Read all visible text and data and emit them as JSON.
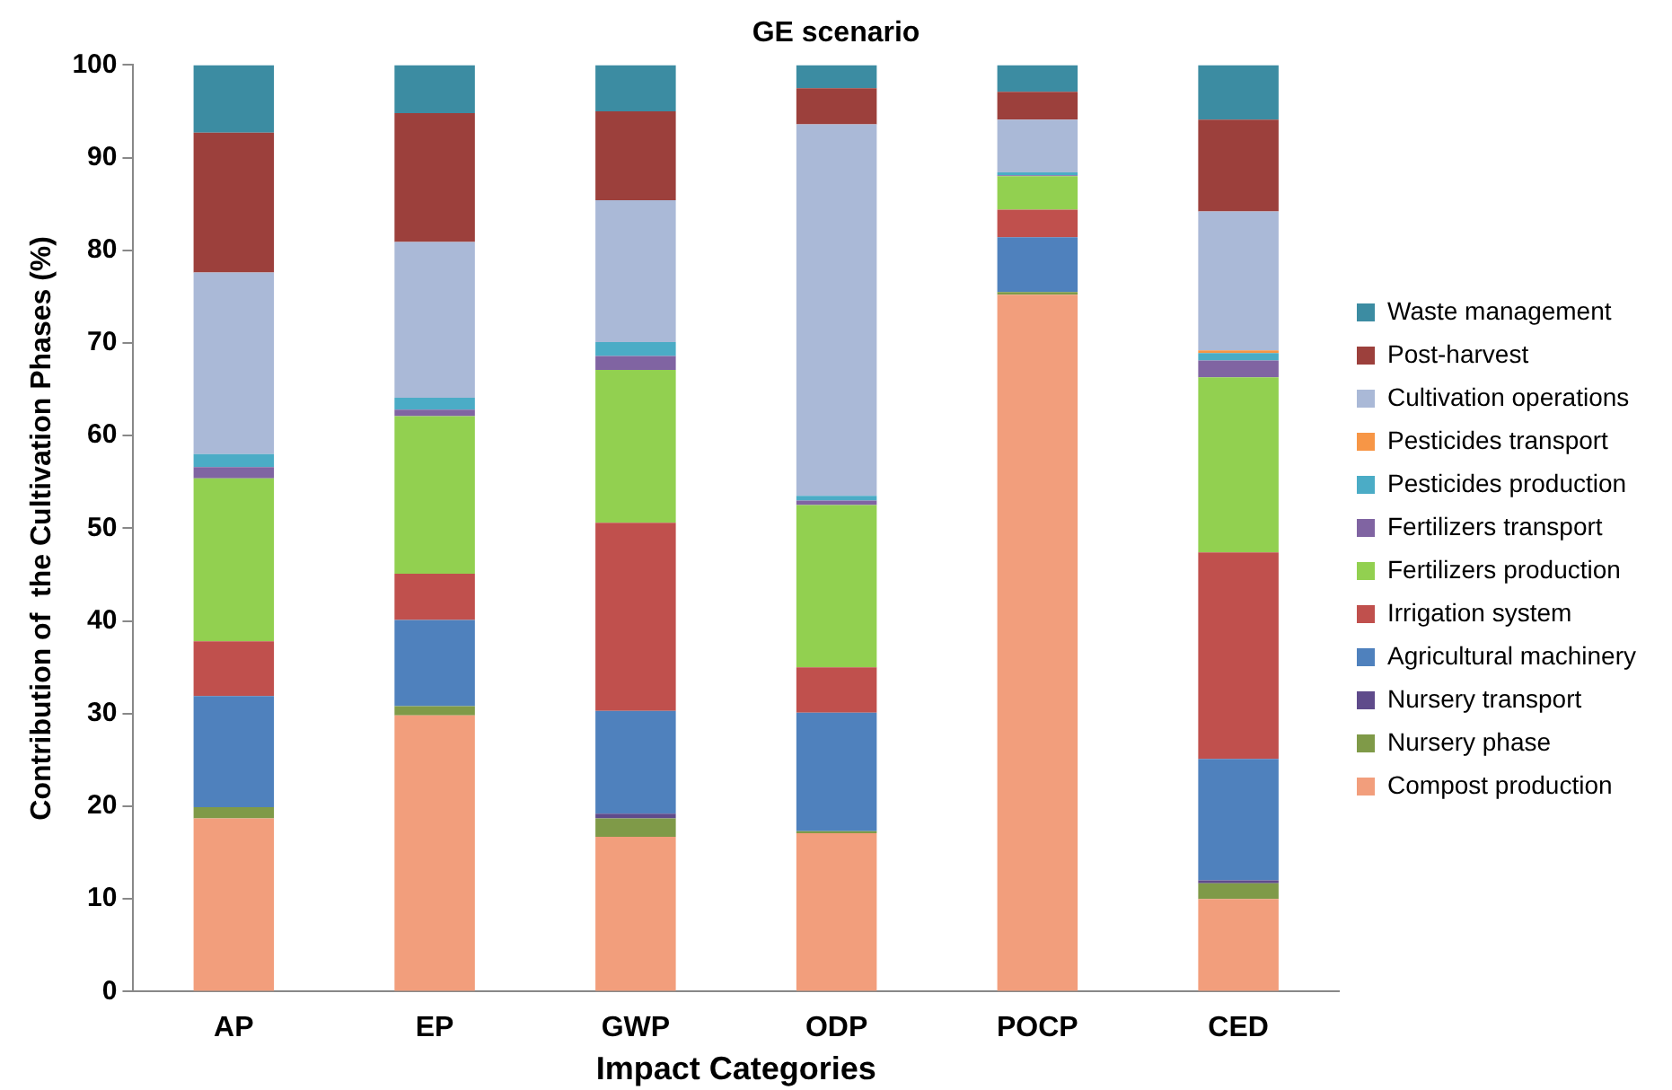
{
  "chart_data": {
    "type": "bar",
    "title": "GE scenario",
    "xlabel": "Impact Categories",
    "ylabel": "Contribution of  the Cultivation Phases (%)",
    "categories": [
      "AP",
      "EP",
      "GWP",
      "ODP",
      "POCP",
      "CED"
    ],
    "stacked": true,
    "ylim": [
      0,
      100
    ],
    "yticks": [
      0,
      10,
      20,
      30,
      40,
      50,
      60,
      70,
      80,
      90,
      100
    ],
    "grid": false,
    "legend": "right",
    "series": [
      {
        "name": "Compost production",
        "color": "#f29e7c",
        "values": [
          18.7,
          29.8,
          16.7,
          17.1,
          75.2,
          10.0
        ]
      },
      {
        "name": "Nursery phase",
        "color": "#7f9a48",
        "values": [
          1.2,
          1.0,
          2.0,
          0.2,
          0.3,
          1.7
        ]
      },
      {
        "name": "Nursery transport",
        "color": "#5f4b8b",
        "values": [
          0,
          0,
          0.5,
          0,
          0,
          0.3
        ]
      },
      {
        "name": "Agricultural machinery",
        "color": "#4f81bd",
        "values": [
          12.0,
          9.3,
          11.1,
          12.8,
          5.9,
          13.1
        ]
      },
      {
        "name": "Irrigation system",
        "color": "#c0504d",
        "values": [
          5.9,
          5.0,
          20.3,
          4.9,
          3.0,
          22.3
        ]
      },
      {
        "name": "Fertilizers production",
        "color": "#92d050",
        "values": [
          17.6,
          17.0,
          16.5,
          17.5,
          3.6,
          18.9
        ]
      },
      {
        "name": "Fertilizers transport",
        "color": "#8064a2",
        "values": [
          1.2,
          0.7,
          1.5,
          0.5,
          0.1,
          1.8
        ]
      },
      {
        "name": "Pesticides production",
        "color": "#4bacc6",
        "values": [
          1.4,
          1.3,
          1.5,
          0.5,
          0.3,
          0.8
        ]
      },
      {
        "name": "Pesticides transport",
        "color": "#f79646",
        "values": [
          0,
          0,
          0,
          0,
          0,
          0.3
        ]
      },
      {
        "name": "Cultivation operations",
        "color": "#aab9d7",
        "values": [
          19.6,
          16.8,
          15.3,
          40.1,
          5.7,
          15.0
        ]
      },
      {
        "name": "Post-harvest",
        "color": "#9c403c",
        "values": [
          15.1,
          13.9,
          9.6,
          3.9,
          3.0,
          9.9
        ]
      },
      {
        "name": "Waste management",
        "color": "#3c8ca2",
        "values": [
          7.3,
          5.2,
          5.0,
          2.5,
          2.9,
          5.9
        ]
      }
    ]
  }
}
